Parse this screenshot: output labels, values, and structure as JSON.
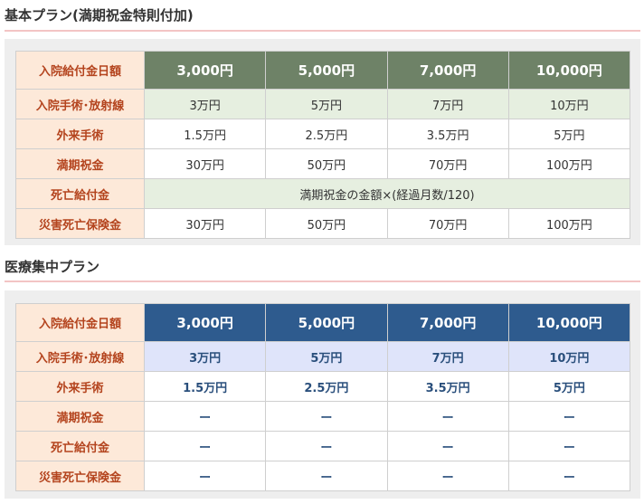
{
  "sections": [
    {
      "title": "基本プラン(満期祝金特則付加)",
      "header_label": "入院給付金日額",
      "columns": [
        "3,000円",
        "5,000円",
        "7,000円",
        "10,000円"
      ],
      "rows": [
        {
          "label": "入院手術･放射線",
          "values": [
            "3万円",
            "5万円",
            "7万円",
            "10万円"
          ]
        },
        {
          "label": "外来手術",
          "values": [
            "1.5万円",
            "2.5万円",
            "3.5万円",
            "5万円"
          ]
        },
        {
          "label": "満期祝金",
          "values": [
            "30万円",
            "50万円",
            "70万円",
            "100万円"
          ]
        },
        {
          "label": "死亡給付金",
          "merged": "満期祝金の金額×(経過月数/120)"
        },
        {
          "label": "災害死亡保険金",
          "values": [
            "30万円",
            "50万円",
            "70万円",
            "100万円"
          ]
        }
      ]
    },
    {
      "title": "医療集中プラン",
      "header_label": "入院給付金日額",
      "columns": [
        "3,000円",
        "5,000円",
        "7,000円",
        "10,000円"
      ],
      "rows": [
        {
          "label": "入院手術･放射線",
          "values": [
            "3万円",
            "5万円",
            "7万円",
            "10万円"
          ]
        },
        {
          "label": "外来手術",
          "values": [
            "1.5万円",
            "2.5万円",
            "3.5万円",
            "5万円"
          ]
        },
        {
          "label": "満期祝金",
          "values": [
            "ー",
            "ー",
            "ー",
            "ー"
          ]
        },
        {
          "label": "死亡給付金",
          "values": [
            "ー",
            "ー",
            "ー",
            "ー"
          ]
        },
        {
          "label": "災害死亡保険金",
          "values": [
            "ー",
            "ー",
            "ー",
            "ー"
          ]
        }
      ]
    }
  ]
}
